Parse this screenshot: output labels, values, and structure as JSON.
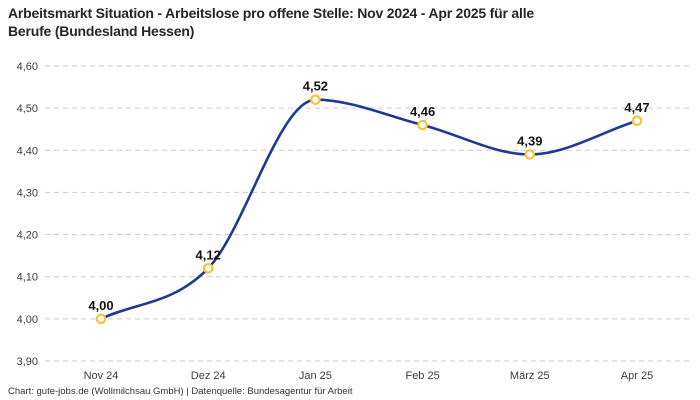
{
  "header": {
    "title": "Arbeitsmarkt Situation - Arbeitslose pro offene Stelle: Nov 2024 - Apr 2025 für alle\nBerufe (Bundesland Hessen)"
  },
  "footer": {
    "text": "Chart: gute-jobs.de (Wollmilchsau GmbH) | Datenquelle: Bundesagentur für Arbeit"
  },
  "chart_data": {
    "type": "line",
    "title": "Arbeitsmarkt Situation - Arbeitslose pro offene Stelle: Nov 2024 - Apr 2025 für alle Berufe (Bundesland Hessen)",
    "categories": [
      "Nov 24",
      "Dez 24",
      "Jan 25",
      "Feb 25",
      "März 25",
      "Apr 25"
    ],
    "series": [
      {
        "name": "Arbeitslose pro offene Stelle",
        "values": [
          4.0,
          4.12,
          4.52,
          4.46,
          4.39,
          4.47
        ],
        "value_labels": [
          "4,00",
          "4,12",
          "4,52",
          "4,46",
          "4,39",
          "4,47"
        ]
      }
    ],
    "xlabel": "",
    "ylabel": "",
    "ylim": [
      3.9,
      4.6
    ],
    "y_ticks": [
      {
        "value": 3.9,
        "label": "3,90"
      },
      {
        "value": 4.0,
        "label": "4,00"
      },
      {
        "value": 4.1,
        "label": "4,10"
      },
      {
        "value": 4.2,
        "label": "4,20"
      },
      {
        "value": 4.3,
        "label": "4,30"
      },
      {
        "value": 4.4,
        "label": "4,40"
      },
      {
        "value": 4.5,
        "label": "4,50"
      },
      {
        "value": 4.6,
        "label": "4,60"
      }
    ],
    "grid": "horizontal-dashed",
    "legend": "none",
    "smoothing": "monotone",
    "colors": {
      "line": "#1e3a93",
      "marker_fill": "#ffffff",
      "marker_stroke": "#fbc237",
      "gridline": "#c9c9c9",
      "tick_text": "#3c3c3c",
      "data_label": "#141414"
    }
  }
}
